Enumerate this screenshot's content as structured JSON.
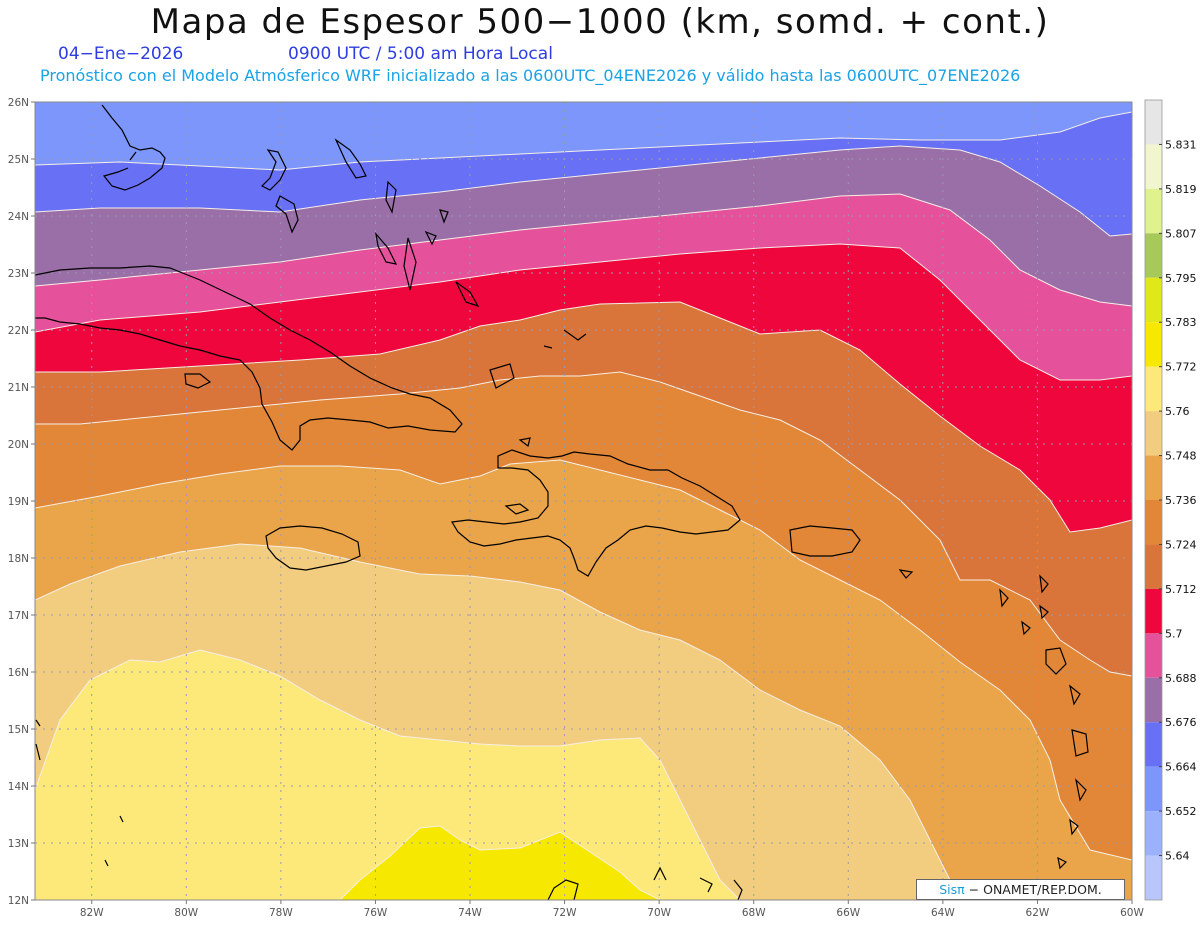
{
  "header": {
    "title": "Mapa de Espesor 500−1000 (km, somd. + cont.)",
    "date": "04−Ene−2026",
    "time": "0900 UTC / 5:00 am Hora Local",
    "subtitle": "Pronóstico con el Modelo Atmósferico WRF inicializado a las 0600UTC_04ENE2026 y válido hasta las  0600UTC_07ENE2026"
  },
  "axes": {
    "lat_labels": [
      "26N",
      "25N",
      "24N",
      "23N",
      "22N",
      "21N",
      "20N",
      "19N",
      "18N",
      "17N",
      "16N",
      "15N",
      "14N",
      "13N",
      "12N"
    ],
    "lon_labels": [
      "82W",
      "80W",
      "78W",
      "76W",
      "74W",
      "72W",
      "70W",
      "68W",
      "66W",
      "64W",
      "62W",
      "60W"
    ],
    "lat_range": [
      12,
      26
    ],
    "lon_range": [
      -83.2,
      -60
    ]
  },
  "colorbar": {
    "labels": [
      "5.831",
      "5.819",
      "5.807",
      "5.795",
      "5.783",
      "5.772",
      "5.76",
      "5.748",
      "5.736",
      "5.724",
      "5.712",
      "5.7",
      "5.688",
      "5.676",
      "5.664",
      "5.652",
      "5.64"
    ],
    "colors": [
      "#e6e6e6",
      "#f2f6cf",
      "#dff28e",
      "#a6c95a",
      "#e0e81a",
      "#f7e800",
      "#fde87a",
      "#f2cd7f",
      "#eaa44a",
      "#e28738",
      "#d9753a",
      "#ee063c",
      "#e6519b",
      "#9a6ea7",
      "#6870f5",
      "#7d96fb",
      "#9bb1fb",
      "#b8c6fb"
    ]
  },
  "map": {
    "contour_interval": 0.012,
    "bands_north_to_south": [
      "#7d96fb",
      "#6870f5",
      "#9a6ea7",
      "#e6519b",
      "#ee063c",
      "#d9753a",
      "#e28738",
      "#eaa44a",
      "#f2cd7f",
      "#fde87a",
      "#f7e800"
    ]
  },
  "credit": {
    "brand": "Sisπ",
    "org": " − ONAMET/REP.DOM."
  }
}
